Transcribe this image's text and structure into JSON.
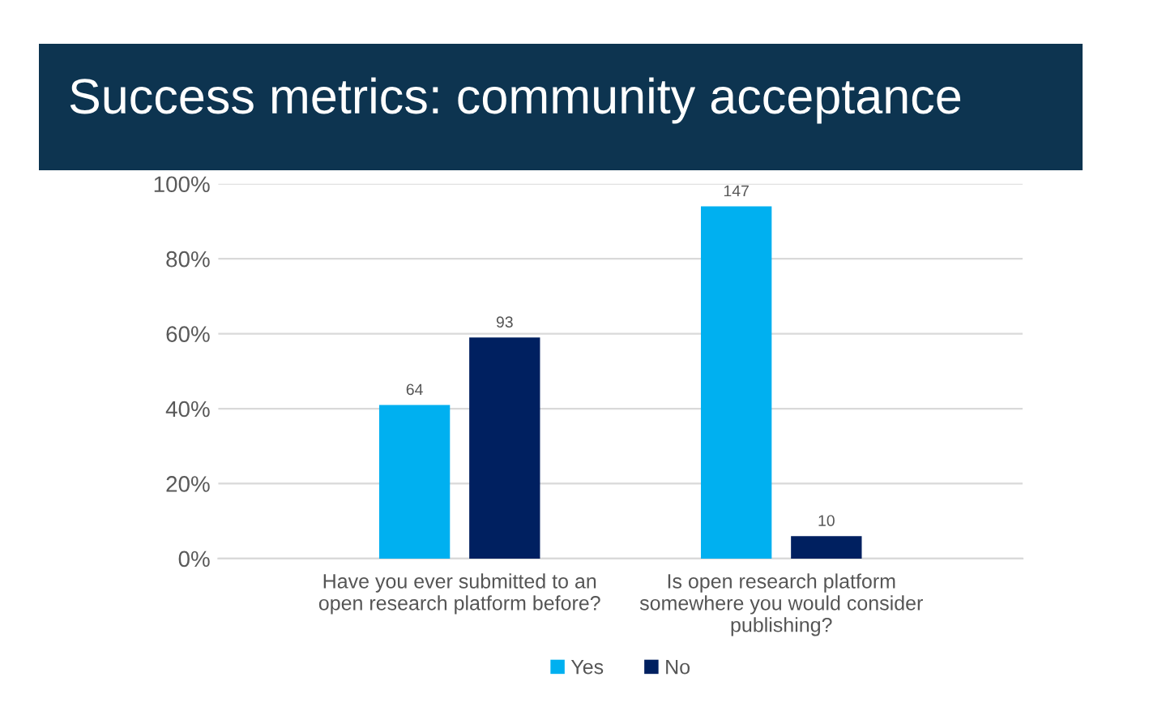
{
  "chart_data": {
    "type": "bar",
    "title": "Success metrics: community acceptance",
    "categories": [
      "Have you ever submitted to an open research platform before?",
      "Is open research platform somewhere you would consider publishing?"
    ],
    "series": [
      {
        "name": "Yes",
        "color": "#00b0f0",
        "values": [
          41,
          94
        ]
      },
      {
        "name": "No",
        "color": "#002060",
        "values": [
          59,
          6
        ]
      }
    ],
    "annotations": [
      "64",
      "93",
      "147",
      "10"
    ],
    "ylim": [
      0,
      100
    ],
    "yticks": [
      {
        "value": 0,
        "label": "0%"
      },
      {
        "value": 20,
        "label": "20%"
      },
      {
        "value": 40,
        "label": "40%"
      },
      {
        "value": 60,
        "label": "60%"
      },
      {
        "value": 80,
        "label": "80%"
      },
      {
        "value": 100,
        "label": "100%"
      }
    ],
    "grid": "y",
    "legend": "bottom"
  }
}
